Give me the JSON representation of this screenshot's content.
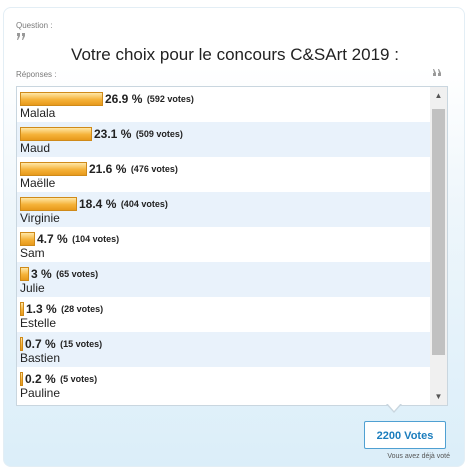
{
  "question": {
    "label": "Question :",
    "title": "Votre choix pour le concours C&SArt 2019 :"
  },
  "responses": {
    "label": "Réponses :",
    "items": [
      {
        "name": "Malala",
        "pct": "26.9 %",
        "votes": "(592 votes)",
        "share": 26.9
      },
      {
        "name": "Maud",
        "pct": "23.1 %",
        "votes": "(509 votes)",
        "share": 23.1
      },
      {
        "name": "Maëlle",
        "pct": "21.6 %",
        "votes": "(476 votes)",
        "share": 21.6
      },
      {
        "name": "Virginie",
        "pct": "18.4 %",
        "votes": "(404 votes)",
        "share": 18.4
      },
      {
        "name": "Sam",
        "pct": "4.7 %",
        "votes": "(104 votes)",
        "share": 4.7
      },
      {
        "name": "Julie",
        "pct": "3 %",
        "votes": "(65 votes)",
        "share": 3
      },
      {
        "name": "Estelle",
        "pct": "1.3 %",
        "votes": "(28 votes)",
        "share": 1.3
      },
      {
        "name": "Bastien",
        "pct": "0.7 %",
        "votes": "(15 votes)",
        "share": 0.7
      },
      {
        "name": "Pauline",
        "pct": "0.2 %",
        "votes": "(5 votes)",
        "share": 0.2
      }
    ]
  },
  "footer": {
    "total_button": "2200 Votes",
    "status": "Vous avez déjà voté"
  },
  "colors": {
    "bar": "#f5b239",
    "accent": "#1b7dbd",
    "alt_row": "#e9f2fb"
  },
  "icons": {
    "question": "quote-icon",
    "responses": "quote-icon",
    "scroll_up": "arrow-up-icon",
    "scroll_down": "arrow-down-icon"
  }
}
